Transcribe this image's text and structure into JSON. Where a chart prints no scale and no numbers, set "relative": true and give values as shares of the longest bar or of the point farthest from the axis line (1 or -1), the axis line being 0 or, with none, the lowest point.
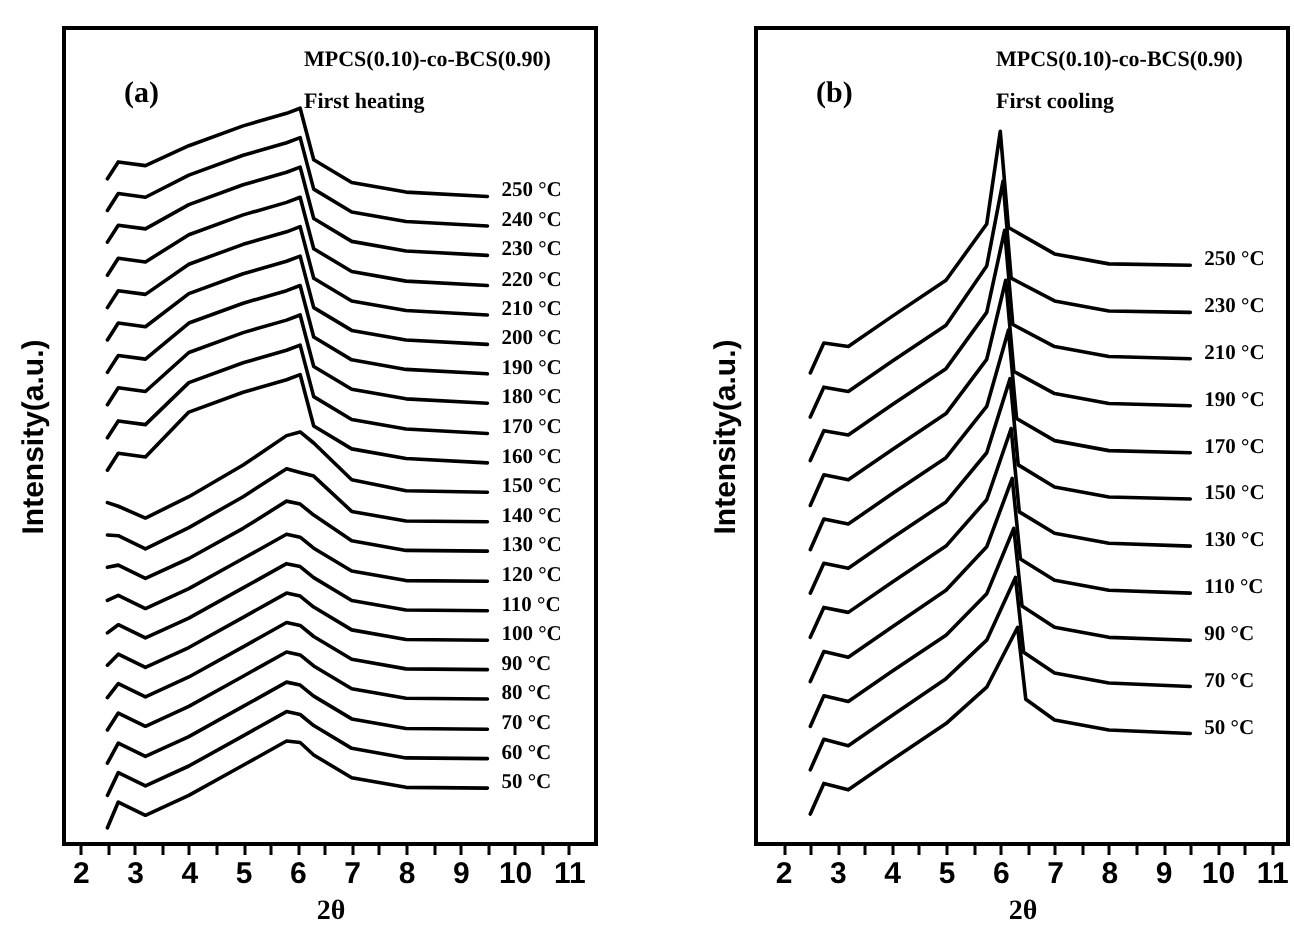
{
  "chart_data": [
    {
      "type": "line",
      "relative": true,
      "xlabel": "2θ",
      "ylabel": "Intensity(a.u.)",
      "xlim": [
        1.7,
        11.5
      ],
      "xticks": [
        2,
        {
          "value": 2.5,
          "label": null
        },
        3,
        {
          "value": 3.5,
          "label": null
        },
        4,
        {
          "value": 4.5,
          "label": null
        },
        5,
        {
          "value": 5.5,
          "label": null
        },
        6,
        {
          "value": 6.5,
          "label": null
        },
        7,
        {
          "value": 7.5,
          "label": null
        },
        8,
        {
          "value": 8.5,
          "label": null
        },
        9,
        {
          "value": 9.5,
          "label": null
        },
        10,
        {
          "value": 10.5,
          "label": null
        },
        11
      ],
      "annotations": [
        "(a)",
        "MPCS(0.10)-co-BCS(0.90)",
        "First heating"
      ],
      "x": [
        2.5,
        2.7,
        3.2,
        4,
        5,
        5.8,
        6.05,
        6.3,
        7,
        8,
        9.5
      ],
      "series": [
        {
          "name": "250 °C",
          "color": "#000000",
          "values": [
            0.904,
            0.927,
            0.922,
            0.949,
            0.976,
            0.993,
            1.0,
            0.93,
            0.899,
            0.886,
            0.88
          ]
        },
        {
          "name": "240 °C",
          "color": "#000000",
          "values": [
            0.861,
            0.884,
            0.879,
            0.909,
            0.936,
            0.953,
            0.96,
            0.89,
            0.859,
            0.846,
            0.84
          ]
        },
        {
          "name": "230 °C",
          "color": "#000000",
          "values": [
            0.818,
            0.841,
            0.836,
            0.869,
            0.896,
            0.913,
            0.92,
            0.85,
            0.819,
            0.806,
            0.8
          ]
        },
        {
          "name": "220 °C",
          "color": "#000000",
          "values": [
            0.773,
            0.796,
            0.791,
            0.828,
            0.855,
            0.872,
            0.879,
            0.809,
            0.778,
            0.765,
            0.759
          ]
        },
        {
          "name": "210 °C",
          "color": "#000000",
          "values": [
            0.729,
            0.752,
            0.747,
            0.788,
            0.815,
            0.832,
            0.839,
            0.769,
            0.738,
            0.725,
            0.719
          ]
        },
        {
          "name": "200 °C",
          "color": "#000000",
          "values": [
            0.685,
            0.708,
            0.703,
            0.748,
            0.775,
            0.792,
            0.799,
            0.729,
            0.698,
            0.685,
            0.679
          ]
        },
        {
          "name": "190 °C",
          "color": "#000000",
          "values": [
            0.641,
            0.664,
            0.659,
            0.708,
            0.735,
            0.752,
            0.759,
            0.689,
            0.658,
            0.645,
            0.639
          ]
        },
        {
          "name": "180 °C",
          "color": "#000000",
          "values": [
            0.597,
            0.62,
            0.615,
            0.668,
            0.695,
            0.712,
            0.719,
            0.649,
            0.618,
            0.605,
            0.599
          ]
        },
        {
          "name": "170 °C",
          "color": "#000000",
          "values": [
            0.552,
            0.575,
            0.57,
            0.627,
            0.654,
            0.671,
            0.678,
            0.608,
            0.577,
            0.564,
            0.558
          ]
        },
        {
          "name": "160 °C",
          "color": "#000000",
          "values": [
            0.508,
            0.531,
            0.526,
            0.587,
            0.614,
            0.631,
            0.638,
            0.568,
            0.537,
            0.524,
            0.518
          ]
        },
        {
          "name": "150 °C",
          "color": "#000000",
          "values": [
            0.464,
            0.459,
            0.443,
            0.472,
            0.515,
            0.555,
            0.56,
            0.545,
            0.495,
            0.48,
            0.478
          ]
        },
        {
          "name": "140 °C",
          "color": "#000000",
          "values": [
            0.42,
            0.419,
            0.401,
            0.43,
            0.472,
            0.51,
            0.505,
            0.5,
            0.452,
            0.439,
            0.438
          ]
        },
        {
          "name": "130 °C",
          "color": "#000000",
          "values": [
            0.376,
            0.379,
            0.361,
            0.388,
            0.429,
            0.466,
            0.462,
            0.447,
            0.412,
            0.399,
            0.398
          ]
        },
        {
          "name": "120 °C",
          "color": "#000000",
          "values": [
            0.331,
            0.338,
            0.32,
            0.347,
            0.388,
            0.421,
            0.417,
            0.402,
            0.371,
            0.358,
            0.357
          ]
        },
        {
          "name": "110 °C",
          "color": "#000000",
          "values": [
            0.287,
            0.298,
            0.28,
            0.307,
            0.348,
            0.381,
            0.377,
            0.362,
            0.331,
            0.318,
            0.317
          ]
        },
        {
          "name": "100 °C",
          "color": "#000000",
          "values": [
            0.243,
            0.258,
            0.24,
            0.267,
            0.308,
            0.341,
            0.337,
            0.322,
            0.291,
            0.278,
            0.277
          ]
        },
        {
          "name": "90 °C",
          "color": "#000000",
          "values": [
            0.199,
            0.218,
            0.2,
            0.227,
            0.268,
            0.301,
            0.297,
            0.282,
            0.251,
            0.238,
            0.237
          ]
        },
        {
          "name": "80 °C",
          "color": "#000000",
          "values": [
            0.155,
            0.178,
            0.16,
            0.187,
            0.228,
            0.261,
            0.257,
            0.242,
            0.211,
            0.198,
            0.197
          ]
        },
        {
          "name": "70 °C",
          "color": "#000000",
          "values": [
            0.11,
            0.137,
            0.119,
            0.146,
            0.187,
            0.22,
            0.216,
            0.201,
            0.17,
            0.157,
            0.156
          ]
        },
        {
          "name": "60 °C",
          "color": "#000000",
          "values": [
            0.066,
            0.097,
            0.079,
            0.106,
            0.147,
            0.18,
            0.176,
            0.161,
            0.13,
            0.117,
            0.116
          ]
        },
        {
          "name": "50 °C",
          "color": "#000000",
          "values": [
            0.022,
            0.057,
            0.039,
            0.066,
            0.107,
            0.14,
            0.138,
            0.121,
            0.09,
            0.077,
            0.076
          ]
        }
      ]
    },
    {
      "type": "line",
      "relative": true,
      "xlabel": "2θ",
      "ylabel": "Intensity(a.u.)",
      "xlim": [
        1.5,
        11.3
      ],
      "xticks": [
        2,
        {
          "value": 2.5,
          "label": null
        },
        3,
        {
          "value": 3.5,
          "label": null
        },
        4,
        {
          "value": 4.5,
          "label": null
        },
        5,
        {
          "value": 5.5,
          "label": null
        },
        6,
        {
          "value": 6.5,
          "label": null
        },
        7,
        {
          "value": 7.5,
          "label": null
        },
        8,
        {
          "value": 8.5,
          "label": null
        },
        9,
        {
          "value": 9.5,
          "label": null
        },
        10,
        {
          "value": 10.5,
          "label": null
        },
        11
      ],
      "annotations": [
        "(b)",
        "MPCS(0.10)-co-BCS(0.90)",
        "First cooling"
      ],
      "series": [
        {
          "name": "250 °C",
          "color": "#000000",
          "x": [
            2.5,
            2.75,
            3.2,
            4,
            5,
            5.75,
            6.0,
            6.15,
            7,
            8,
            9.5
          ],
          "values": [
            0.661,
            0.703,
            0.698,
            0.74,
            0.791,
            0.87,
            1.0,
            0.865,
            0.828,
            0.814,
            0.812
          ]
        },
        {
          "name": "230 °C",
          "color": "#000000",
          "x": [
            2.5,
            2.75,
            3.2,
            4,
            5,
            5.75,
            6.05,
            6.2,
            7,
            8,
            9.5
          ],
          "values": [
            0.599,
            0.641,
            0.635,
            0.677,
            0.728,
            0.811,
            0.93,
            0.794,
            0.762,
            0.748,
            0.746
          ]
        },
        {
          "name": "210 °C",
          "color": "#000000",
          "x": [
            2.5,
            2.75,
            3.2,
            4,
            5,
            5.75,
            6.08,
            6.23,
            7,
            8,
            9.5
          ],
          "values": [
            0.538,
            0.58,
            0.574,
            0.616,
            0.667,
            0.746,
            0.861,
            0.729,
            0.698,
            0.684,
            0.681
          ]
        },
        {
          "name": "190 °C",
          "color": "#000000",
          "x": [
            2.5,
            2.75,
            3.2,
            4,
            5,
            5.75,
            6.1,
            6.25,
            7,
            8,
            9.5
          ],
          "values": [
            0.475,
            0.518,
            0.511,
            0.553,
            0.604,
            0.68,
            0.791,
            0.663,
            0.632,
            0.618,
            0.615
          ]
        },
        {
          "name": "170 °C",
          "color": "#000000",
          "x": [
            2.5,
            2.75,
            3.2,
            4,
            5,
            5.75,
            6.15,
            6.3,
            7,
            8,
            9.5
          ],
          "values": [
            0.413,
            0.456,
            0.449,
            0.491,
            0.542,
            0.614,
            0.721,
            0.597,
            0.566,
            0.552,
            0.549
          ]
        },
        {
          "name": "150 °C",
          "color": "#000000",
          "x": [
            2.5,
            2.75,
            3.2,
            4,
            5,
            5.75,
            6.18,
            6.33,
            7,
            8,
            9.5
          ],
          "values": [
            0.352,
            0.394,
            0.387,
            0.429,
            0.48,
            0.549,
            0.653,
            0.532,
            0.501,
            0.487,
            0.484
          ]
        },
        {
          "name": "130 °C",
          "color": "#000000",
          "x": [
            2.5,
            2.75,
            3.2,
            4,
            5,
            5.75,
            6.2,
            6.35,
            7,
            8,
            9.5
          ],
          "values": [
            0.29,
            0.332,
            0.325,
            0.367,
            0.418,
            0.483,
            0.583,
            0.466,
            0.436,
            0.422,
            0.418
          ]
        },
        {
          "name": "110 °C",
          "color": "#000000",
          "x": [
            2.5,
            2.75,
            3.2,
            4,
            5,
            5.75,
            6.22,
            6.37,
            7,
            8,
            9.5
          ],
          "values": [
            0.228,
            0.27,
            0.262,
            0.304,
            0.356,
            0.417,
            0.513,
            0.4,
            0.37,
            0.356,
            0.352
          ]
        },
        {
          "name": "90 °C",
          "color": "#000000",
          "x": [
            2.5,
            2.75,
            3.2,
            4,
            5,
            5.75,
            6.25,
            6.4,
            7,
            8,
            9.5
          ],
          "values": [
            0.165,
            0.208,
            0.2,
            0.242,
            0.293,
            0.351,
            0.443,
            0.334,
            0.304,
            0.29,
            0.286
          ]
        },
        {
          "name": "70 °C",
          "color": "#000000",
          "x": [
            2.5,
            2.75,
            3.2,
            4,
            5,
            5.75,
            6.28,
            6.43,
            7,
            8,
            9.5
          ],
          "values": [
            0.104,
            0.147,
            0.138,
            0.18,
            0.232,
            0.286,
            0.374,
            0.269,
            0.24,
            0.226,
            0.221
          ]
        },
        {
          "name": "50 °C",
          "color": "#000000",
          "x": [
            2.5,
            2.75,
            3.2,
            4,
            5,
            5.75,
            6.32,
            6.47,
            7,
            8,
            9.5
          ],
          "values": [
            0.042,
            0.085,
            0.076,
            0.118,
            0.169,
            0.22,
            0.304,
            0.203,
            0.174,
            0.16,
            0.155
          ]
        }
      ]
    }
  ]
}
